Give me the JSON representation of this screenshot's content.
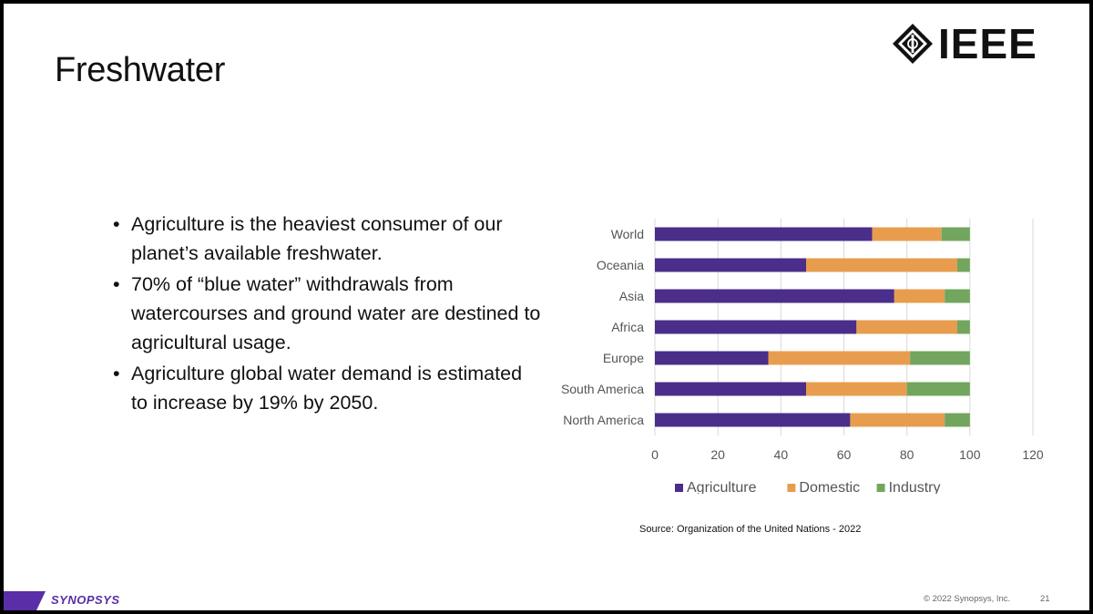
{
  "slide": {
    "title": "Freshwater",
    "bullets": [
      "Agriculture is the heaviest consumer of our planet’s available freshwater.",
      "70% of “blue water” withdrawals from watercourses and ground water are destined to agricultural usage.",
      "Agriculture global water demand is estimated to increase by 19% by 2050."
    ],
    "source": "Source: Organization of the United Nations - 2022"
  },
  "logo": {
    "text": "IEEE",
    "icon": "ieee-diamond-icon"
  },
  "footer": {
    "brand": "SYNOPSYS",
    "copyright": "© 2022 Synopsys, Inc.",
    "page": "21"
  },
  "colors": {
    "agriculture": "#4b2d8a",
    "domestic": "#e89d4e",
    "industry": "#72a65e",
    "brand_purple": "#5a2ea6"
  },
  "chart_data": {
    "type": "bar",
    "orientation": "horizontal",
    "stacked": true,
    "categories": [
      "World",
      "Oceania",
      "Asia",
      "Africa",
      "Europe",
      "South America",
      "North America"
    ],
    "series": [
      {
        "name": "Agriculture",
        "values": [
          69,
          48,
          76,
          64,
          36,
          48,
          62
        ]
      },
      {
        "name": "Domestic",
        "values": [
          22,
          48,
          16,
          32,
          45,
          32,
          30
        ]
      },
      {
        "name": "Industry",
        "values": [
          9,
          4,
          8,
          4,
          19,
          20,
          8
        ]
      }
    ],
    "xlim": [
      0,
      120
    ],
    "xticks": [
      0,
      20,
      40,
      60,
      80,
      100,
      120
    ],
    "grid": true,
    "legend": "bottom",
    "title": "",
    "xlabel": "",
    "ylabel": ""
  }
}
